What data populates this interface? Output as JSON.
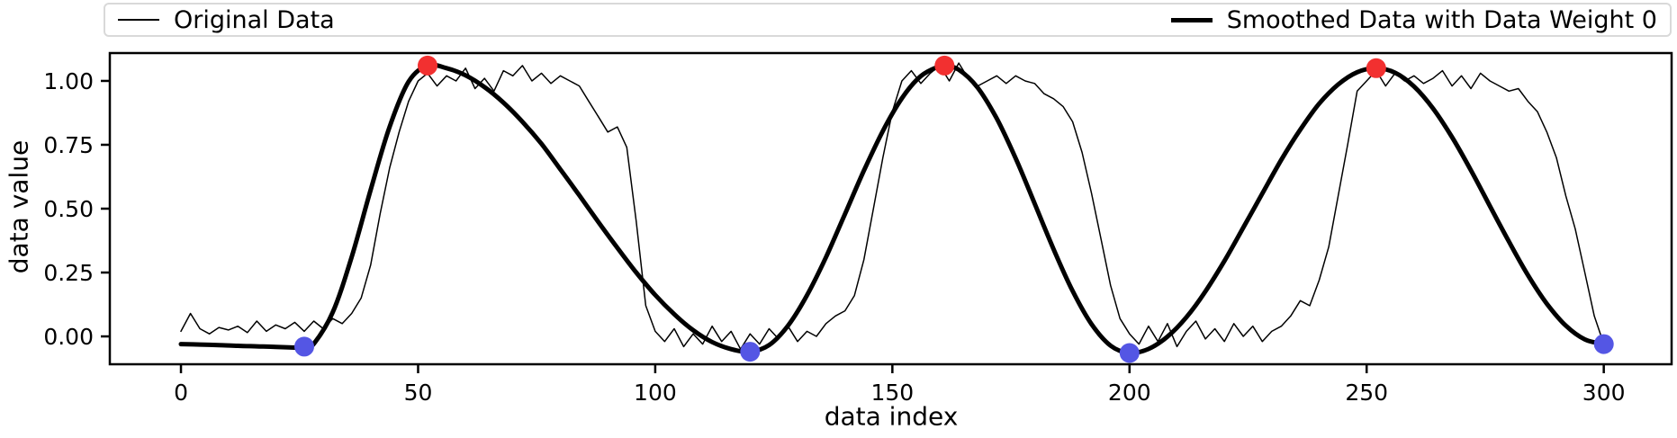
{
  "figure": {
    "background": "#ffffff",
    "xlabel": "data index",
    "ylabel": "data value"
  },
  "legend": {
    "items": [
      {
        "label": "Original Data",
        "line_weight": "thin"
      },
      {
        "label": "Smoothed Data with Data Weight 0",
        "line_weight": "thick"
      }
    ]
  },
  "chart_data": {
    "type": "line",
    "title": "",
    "xlabel": "data index",
    "ylabel": "data value",
    "xlim": [
      -15,
      314.3
    ],
    "ylim": [
      -0.109,
      1.109
    ],
    "x_ticks": [
      0,
      50,
      100,
      150,
      200,
      250,
      300
    ],
    "x_tick_labels": [
      "0",
      "50",
      "100",
      "150",
      "200",
      "250",
      "300"
    ],
    "y_ticks": [
      0.0,
      0.25,
      0.5,
      0.75,
      1.0
    ],
    "y_tick_labels": [
      "0.00",
      "0.25",
      "0.50",
      "0.75",
      "1.00"
    ],
    "grid": false,
    "legend_position": "top, expanded across full plot width",
    "line_color": "#000000",
    "series": [
      {
        "name": "Original Data",
        "color": "#000000",
        "width": 1.5,
        "smooth": false,
        "x_start": 0,
        "x_step": 2,
        "y": [
          0.02,
          0.09,
          0.03,
          0.01,
          0.035,
          0.025,
          0.04,
          0.015,
          0.06,
          0.02,
          0.045,
          0.03,
          0.055,
          0.02,
          0.06,
          0.03,
          0.07,
          0.05,
          0.09,
          0.15,
          0.28,
          0.48,
          0.66,
          0.8,
          0.92,
          1.0,
          1.03,
          0.98,
          1.02,
          1.0,
          1.05,
          0.97,
          1.01,
          0.96,
          1.04,
          1.02,
          1.06,
          1.0,
          1.03,
          0.99,
          1.02,
          1.0,
          0.98,
          0.92,
          0.86,
          0.8,
          0.82,
          0.74,
          0.45,
          0.12,
          0.02,
          -0.02,
          0.03,
          -0.04,
          0.01,
          -0.03,
          0.04,
          -0.02,
          0.02,
          -0.05,
          0.01,
          -0.03,
          0.03,
          -0.01,
          0.04,
          -0.02,
          0.02,
          0.0,
          0.05,
          0.08,
          0.1,
          0.16,
          0.3,
          0.5,
          0.7,
          0.88,
          1.0,
          1.04,
          0.99,
          1.03,
          1.06,
          1.0,
          1.07,
          1.01,
          0.98,
          1.0,
          1.02,
          0.99,
          1.02,
          1.0,
          0.99,
          0.95,
          0.93,
          0.9,
          0.84,
          0.72,
          0.56,
          0.38,
          0.2,
          0.07,
          0.01,
          -0.03,
          0.04,
          -0.02,
          0.05,
          -0.04,
          0.02,
          0.06,
          -0.01,
          0.03,
          -0.02,
          0.05,
          0.0,
          0.04,
          -0.02,
          0.02,
          0.04,
          0.08,
          0.14,
          0.12,
          0.22,
          0.35,
          0.55,
          0.75,
          0.96,
          1.0,
          1.04,
          0.98,
          1.03,
          1.0,
          1.02,
          0.99,
          1.01,
          1.04,
          0.98,
          1.02,
          0.97,
          1.03,
          1.0,
          0.98,
          0.96,
          0.97,
          0.92,
          0.88,
          0.8,
          0.7,
          0.55,
          0.42,
          0.25,
          0.08,
          -0.03
        ]
      },
      {
        "name": "Smoothed Data with Data Weight 0",
        "color": "#000000",
        "width": 5,
        "smooth": true,
        "x": [
          0,
          4,
          8,
          12,
          16,
          20,
          24,
          26,
          28,
          32,
          36,
          40,
          44,
          48,
          52,
          56,
          60,
          64,
          68,
          72,
          76,
          80,
          84,
          88,
          92,
          96,
          100,
          104,
          108,
          112,
          116,
          120,
          124,
          128,
          132,
          136,
          140,
          144,
          148,
          152,
          156,
          160,
          161,
          164,
          168,
          172,
          176,
          180,
          184,
          188,
          192,
          196,
          200,
          204,
          208,
          212,
          216,
          220,
          224,
          228,
          232,
          236,
          240,
          244,
          248,
          252,
          256,
          260,
          264,
          268,
          272,
          276,
          280,
          284,
          288,
          292,
          296,
          300
        ],
        "y": [
          -0.03,
          -0.032,
          -0.034,
          -0.037,
          -0.039,
          -0.041,
          -0.044,
          -0.045,
          -0.029,
          0.094,
          0.311,
          0.574,
          0.821,
          0.997,
          1.06,
          1.05,
          1.022,
          0.976,
          0.915,
          0.84,
          0.754,
          0.654,
          0.552,
          0.448,
          0.347,
          0.25,
          0.162,
          0.087,
          0.024,
          -0.022,
          -0.05,
          -0.06,
          -0.034,
          0.042,
          0.161,
          0.31,
          0.479,
          0.649,
          0.804,
          0.932,
          1.019,
          1.058,
          1.06,
          1.044,
          0.973,
          0.853,
          0.697,
          0.52,
          0.341,
          0.178,
          0.048,
          -0.036,
          -0.065,
          -0.049,
          -0.001,
          0.075,
          0.176,
          0.295,
          0.426,
          0.559,
          0.691,
          0.809,
          0.911,
          0.986,
          1.034,
          1.05,
          1.032,
          0.978,
          0.892,
          0.78,
          0.65,
          0.51,
          0.371,
          0.24,
          0.128,
          0.042,
          -0.012,
          -0.03
        ]
      }
    ],
    "markers": [
      {
        "name": "smoothed-maxima",
        "color": "#f23030",
        "radius": 11,
        "points": [
          [
            52,
            1.06
          ],
          [
            161,
            1.06
          ],
          [
            252,
            1.05
          ]
        ]
      },
      {
        "name": "smoothed-minima",
        "color": "#5456e4",
        "radius": 11,
        "points": [
          [
            26,
            -0.04
          ],
          [
            120,
            -0.06
          ],
          [
            200,
            -0.065
          ],
          [
            300,
            -0.03
          ]
        ]
      }
    ]
  }
}
